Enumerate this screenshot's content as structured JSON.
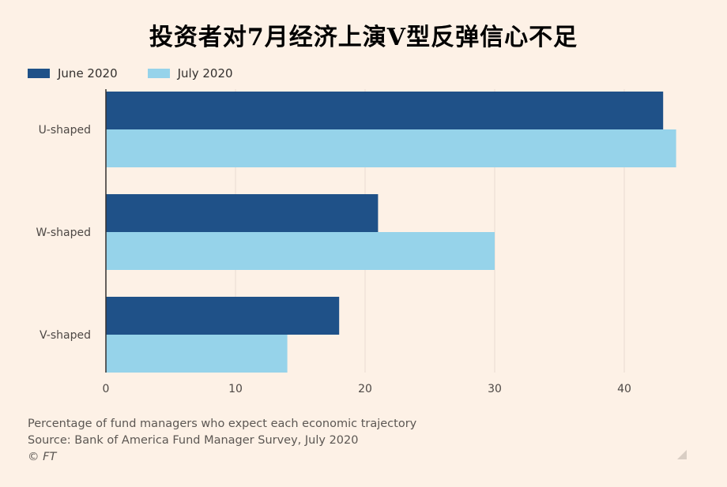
{
  "title": "投资者对7月经济上演V型反弹信心不足",
  "footer": {
    "description": "Percentage of fund managers who expect each economic trajectory",
    "source": "Source: Bank of America Fund Manager Survey, July 2020",
    "copyright": "© FT"
  },
  "colors": {
    "june": "#1f5188",
    "july": "#96d3ea",
    "grid": "#e9dcd1",
    "axis": "#33302e",
    "background": "#fdf1e6"
  },
  "chart_data": {
    "type": "bar",
    "orientation": "horizontal",
    "categories": [
      "U-shaped",
      "W-shaped",
      "V-shaped"
    ],
    "series": [
      {
        "name": "June 2020",
        "values": [
          43,
          21,
          18
        ]
      },
      {
        "name": "July 2020",
        "values": [
          44,
          30,
          14
        ]
      }
    ],
    "xlim": [
      0,
      45
    ],
    "xticks": [
      0,
      10,
      20,
      30,
      40
    ],
    "grid": true,
    "legend": "top-left"
  }
}
